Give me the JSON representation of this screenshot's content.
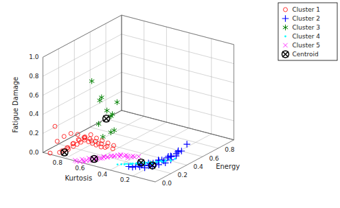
{
  "chart_data": {
    "type": "scatter3d",
    "xlabel": "Kurtosis",
    "ylabel": "Energy",
    "zlabel": "Fatigue Damage",
    "xlim": [
      1.0,
      0.0
    ],
    "ylim": [
      0.0,
      1.0
    ],
    "zlim": [
      0.0,
      1.0
    ],
    "xticks": [
      0.2,
      0.4,
      0.6,
      0.8
    ],
    "yticks": [
      {
        "value": 0,
        "label": "0.0"
      },
      0.2,
      0.4,
      0.6,
      0.8
    ],
    "zticks": [
      {
        "value": 0,
        "label": "0.0"
      },
      0.2,
      0.4,
      0.6,
      0.8,
      {
        "value": 1.0,
        "label": "1.0"
      }
    ],
    "grid": true,
    "legend": "upper right",
    "series": [
      {
        "name": "Cluster 1",
        "color": "red",
        "marker": "circle",
        "x": [
          0.95,
          0.88,
          0.85,
          0.83,
          0.8,
          0.78,
          0.76,
          0.74,
          0.72,
          0.7,
          0.68,
          0.65,
          0.85,
          0.82,
          0.79,
          0.76,
          0.73,
          0.7,
          0.67,
          0.64,
          0.61,
          0.58,
          0.8,
          0.77,
          0.74,
          0.71,
          0.68,
          0.65,
          0.62,
          0.59,
          0.56,
          0.88,
          0.84,
          0.8,
          0.76,
          0.72,
          0.68,
          0.64,
          0.6,
          0.9
        ],
        "y": [
          0.02,
          0.04,
          0.06,
          0.08,
          0.1,
          0.12,
          0.14,
          0.16,
          0.18,
          0.2,
          0.22,
          0.24,
          0.03,
          0.06,
          0.09,
          0.12,
          0.15,
          0.18,
          0.21,
          0.24,
          0.27,
          0.3,
          0.02,
          0.05,
          0.08,
          0.11,
          0.14,
          0.17,
          0.2,
          0.23,
          0.26,
          0.01,
          0.04,
          0.07,
          0.1,
          0.13,
          0.16,
          0.19,
          0.22,
          0.01
        ],
        "z": [
          0.0,
          0.02,
          0.04,
          0.05,
          0.08,
          0.1,
          0.12,
          0.14,
          0.12,
          0.1,
          0.08,
          0.06,
          0.05,
          0.08,
          0.12,
          0.15,
          0.18,
          0.2,
          0.16,
          0.13,
          0.1,
          0.07,
          0.1,
          0.14,
          0.18,
          0.2,
          0.18,
          0.15,
          0.12,
          0.09,
          0.06,
          0.15,
          0.2,
          0.23,
          0.22,
          0.18,
          0.15,
          0.12,
          0.08,
          0.3
        ]
      },
      {
        "name": "Cluster 2",
        "color": "blue",
        "marker": "plus",
        "x": [
          0.22,
          0.18,
          0.15,
          0.12,
          0.1,
          0.08,
          0.06,
          0.04,
          0.25,
          0.2,
          0.16,
          0.12,
          0.08,
          0.05,
          0.28,
          0.23,
          0.18,
          0.13,
          0.08,
          0.04,
          0.3,
          0.25,
          0.2,
          0.15,
          0.1,
          0.05,
          0.32,
          0.26,
          0.2,
          0.14,
          0.08
        ],
        "y": [
          0.18,
          0.22,
          0.26,
          0.3,
          0.34,
          0.38,
          0.42,
          0.46,
          0.16,
          0.2,
          0.24,
          0.28,
          0.32,
          0.36,
          0.15,
          0.19,
          0.23,
          0.27,
          0.31,
          0.35,
          0.14,
          0.18,
          0.22,
          0.26,
          0.3,
          0.34,
          0.12,
          0.16,
          0.2,
          0.24,
          0.28
        ],
        "z": [
          0.0,
          0.01,
          0.02,
          0.03,
          0.05,
          0.08,
          0.12,
          0.18,
          0.01,
          0.02,
          0.04,
          0.06,
          0.1,
          0.14,
          0.01,
          0.02,
          0.04,
          0.07,
          0.11,
          0.16,
          0.0,
          0.02,
          0.03,
          0.06,
          0.09,
          0.13,
          0.01,
          0.03,
          0.05,
          0.08,
          0.12
        ]
      },
      {
        "name": "Cluster 3",
        "color": "green",
        "marker": "asterisk",
        "x": [
          0.6,
          0.55,
          0.5,
          0.48,
          0.52,
          0.56,
          0.45,
          0.5,
          0.55,
          0.48,
          0.52
        ],
        "y": [
          0.05,
          0.08,
          0.1,
          0.14,
          0.18,
          0.08,
          0.12,
          0.15,
          0.12,
          0.2,
          0.06
        ],
        "z": [
          0.85,
          0.65,
          0.55,
          0.5,
          0.45,
          0.4,
          0.35,
          0.3,
          0.25,
          0.6,
          0.7
        ]
      },
      {
        "name": "Cluster 4",
        "color": "cyan",
        "marker": "point",
        "x": [
          0.35,
          0.32,
          0.3,
          0.28,
          0.25,
          0.22,
          0.2,
          0.18,
          0.16,
          0.14,
          0.38,
          0.35,
          0.32,
          0.29,
          0.26,
          0.23,
          0.2,
          0.17,
          0.14,
          0.4,
          0.37,
          0.34,
          0.3,
          0.27,
          0.24,
          0.21,
          0.18,
          0.42,
          0.38,
          0.34,
          0.3,
          0.26,
          0.22
        ],
        "y": [
          0.18,
          0.21,
          0.24,
          0.27,
          0.3,
          0.33,
          0.36,
          0.39,
          0.42,
          0.45,
          0.16,
          0.19,
          0.22,
          0.25,
          0.28,
          0.31,
          0.34,
          0.37,
          0.4,
          0.14,
          0.17,
          0.2,
          0.23,
          0.26,
          0.29,
          0.32,
          0.35,
          0.12,
          0.15,
          0.18,
          0.21,
          0.24,
          0.27
        ],
        "z": [
          0.0,
          0.0,
          0.0,
          0.0,
          0.0,
          0.0,
          0.0,
          0.0,
          0.0,
          0.0,
          0.0,
          0.0,
          0.0,
          0.0,
          0.0,
          0.0,
          0.0,
          0.0,
          0.0,
          0.0,
          0.0,
          0.0,
          0.0,
          0.0,
          0.0,
          0.0,
          0.0,
          0.0,
          0.0,
          0.0,
          0.0,
          0.0,
          0.0
        ]
      },
      {
        "name": "Cluster 5",
        "color": "magenta",
        "marker": "times",
        "x": [
          0.65,
          0.62,
          0.58,
          0.55,
          0.52,
          0.48,
          0.45,
          0.42,
          0.38,
          0.35,
          0.68,
          0.64,
          0.6,
          0.56,
          0.52,
          0.48,
          0.44,
          0.4,
          0.36,
          0.7,
          0.66,
          0.62,
          0.58,
          0.54,
          0.5,
          0.46,
          0.42,
          0.38,
          0.72,
          0.68,
          0.64,
          0.6,
          0.55,
          0.5,
          0.45,
          0.4
        ],
        "y": [
          0.02,
          0.05,
          0.08,
          0.11,
          0.14,
          0.17,
          0.2,
          0.23,
          0.26,
          0.29,
          0.01,
          0.04,
          0.07,
          0.1,
          0.13,
          0.16,
          0.19,
          0.22,
          0.25,
          0.0,
          0.03,
          0.06,
          0.09,
          0.12,
          0.15,
          0.18,
          0.21,
          0.24,
          0.01,
          0.04,
          0.07,
          0.1,
          0.13,
          0.16,
          0.19,
          0.22
        ],
        "z": [
          0.0,
          0.01,
          0.02,
          0.03,
          0.04,
          0.05,
          0.06,
          0.05,
          0.04,
          0.03,
          0.0,
          0.01,
          0.02,
          0.03,
          0.04,
          0.05,
          0.06,
          0.05,
          0.04,
          0.0,
          0.01,
          0.02,
          0.03,
          0.04,
          0.05,
          0.06,
          0.05,
          0.04,
          0.0,
          0.01,
          0.02,
          0.03,
          0.04,
          0.05,
          0.04,
          0.03
        ]
      },
      {
        "name": "Centroid",
        "color": "black",
        "marker": "circled_times",
        "x": [
          0.85,
          0.52,
          0.6,
          0.18,
          0.28
        ],
        "y": [
          0.06,
          0.12,
          0.08,
          0.22,
          0.22
        ],
        "z": [
          0.02,
          0.45,
          0.02,
          0.02,
          0.02
        ]
      }
    ]
  }
}
